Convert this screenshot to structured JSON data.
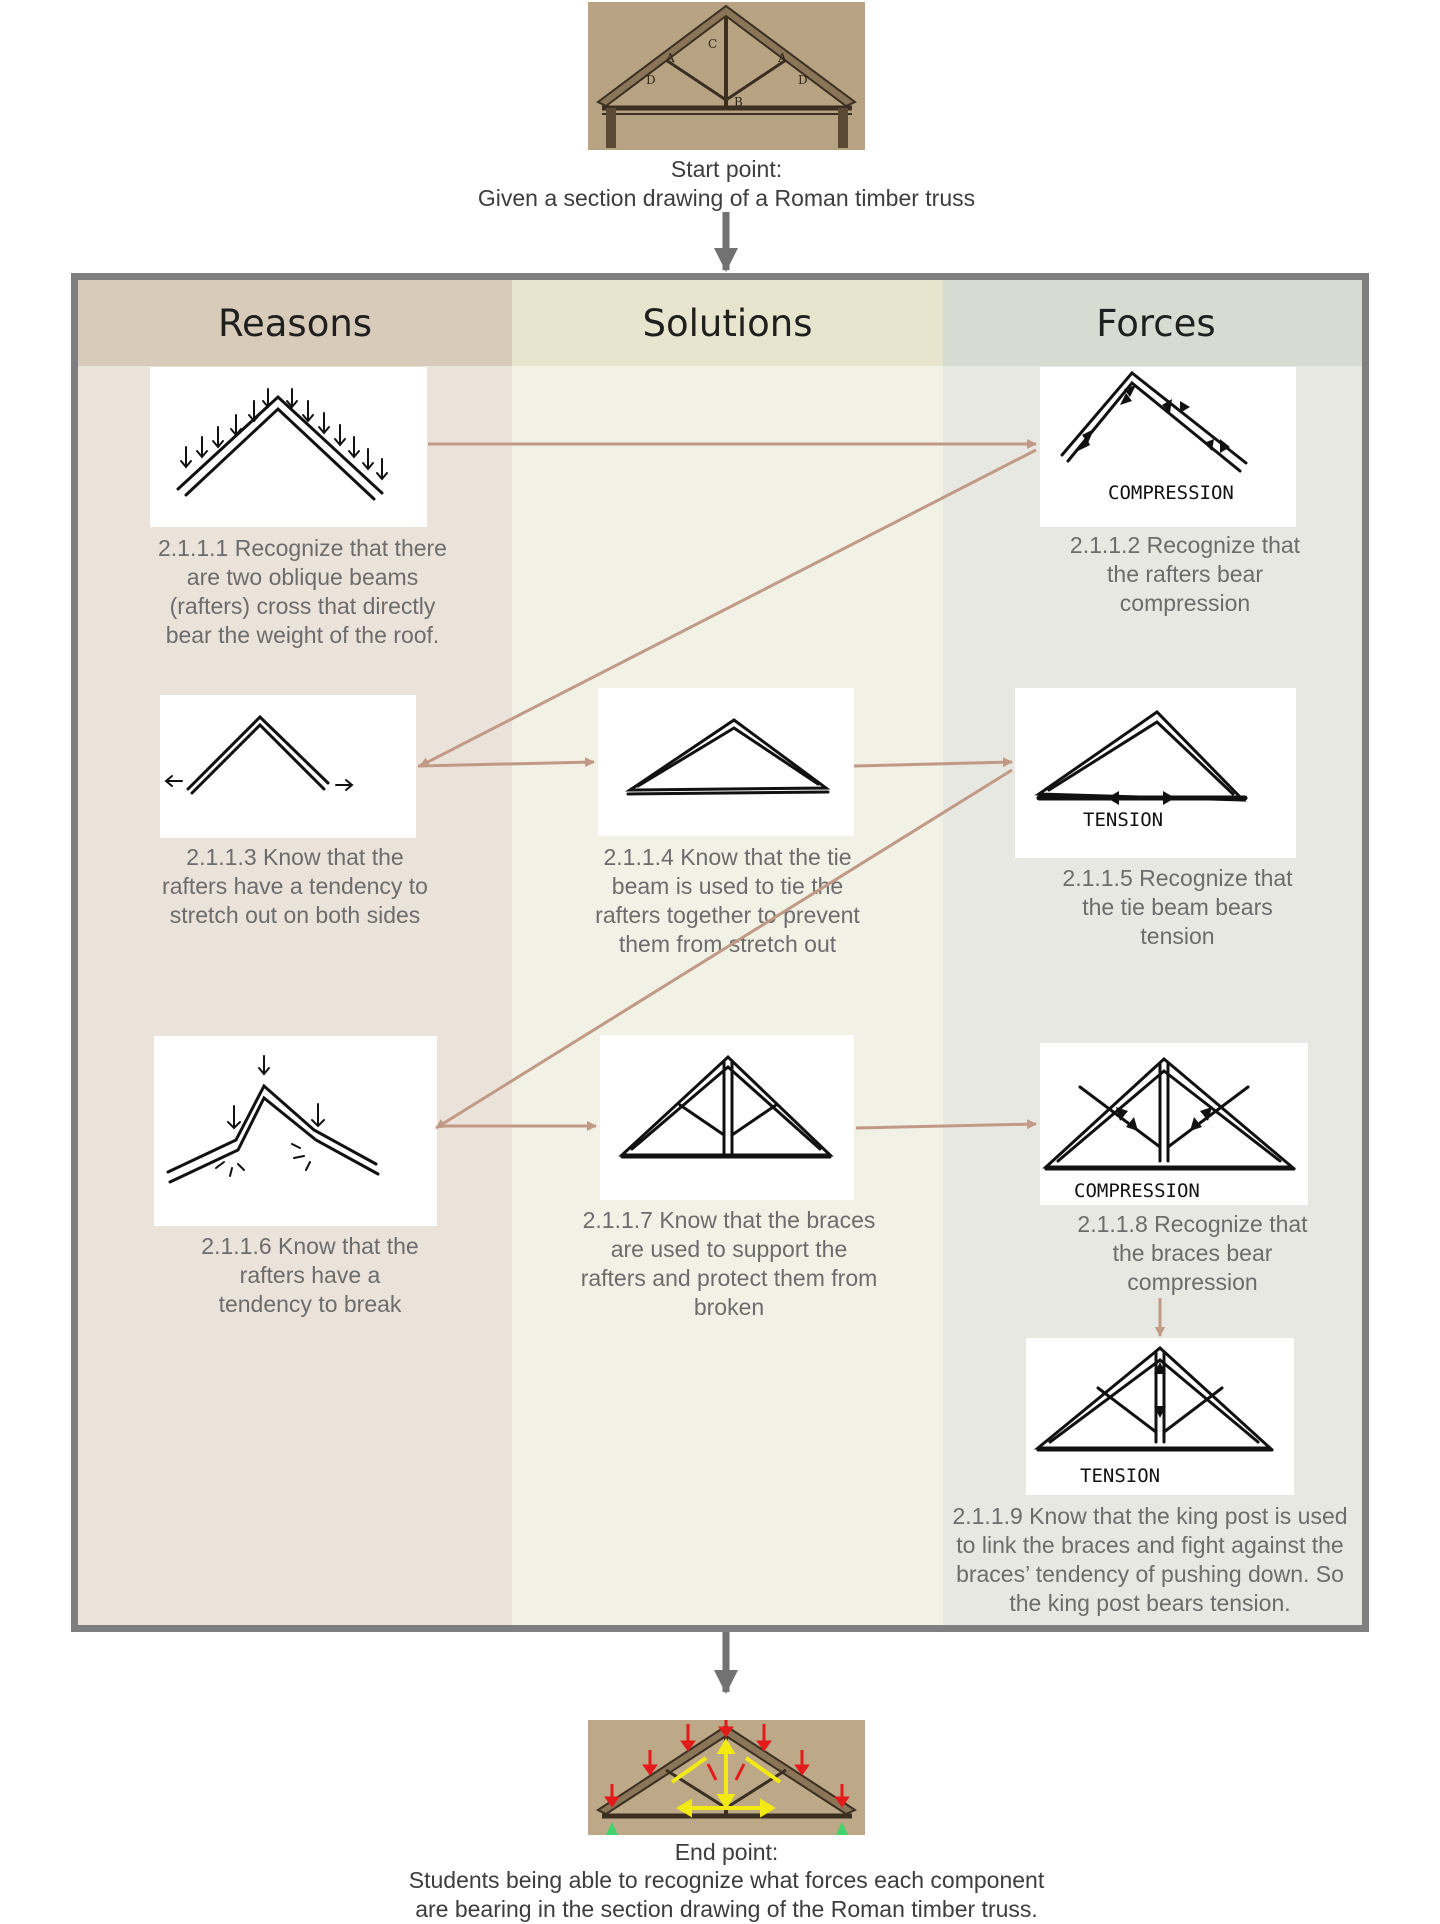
{
  "start": {
    "caption_title": "Start point:",
    "caption_text": "Given a section drawing of a Roman timber truss",
    "photo_letters": [
      "A",
      "A",
      "B",
      "C",
      "D",
      "D"
    ]
  },
  "columns": [
    {
      "key": "reasons",
      "title": "Reasons"
    },
    {
      "key": "solutions",
      "title": "Solutions"
    },
    {
      "key": "forces",
      "title": "Forces"
    }
  ],
  "steps": {
    "s1": "2.1.1.1 Recognize that there\nare  two oblique beams\n(rafters) cross  that directly\nbear the weight of the roof.",
    "s2": "2.1.1.2 Recognize that\nthe rafters  bear\ncompression",
    "s3": "2.1.1.3 Know that the\nrafters have a  tendency to\nstretch out on both sides",
    "s4": "2.1.1.4 Know that the tie\nbeam is  used to tie the\nrafters together to prevent\nthem from stretch out",
    "s5": "2.1.1.5 Recognize that\nthe tie beam  bears\ntension",
    "s6": "2.1.1.6 Know that the\nrafters have a\ntendency to break",
    "s7": "2.1.1.7 Know that the braces\nare  used to support the\nrafters and protect them from\nbroken",
    "s8": "2.1.1.8 Recognize that\nthe braces  bear\ncompression",
    "s9": "2.1.1.9 Know that the king post is  used\nto link the braces and fight  against the\nbraces’ tendency of  pushing down. So\nthe king post bears tension."
  },
  "sketch_labels": {
    "compression": "COMPRESSION",
    "tension": "TENSION"
  },
  "end": {
    "caption_title": "End point:",
    "caption_text": "Students being able to recognize  what forces each component\nare  bearing in the section drawing of the Roman timber truss."
  },
  "colors": {
    "arrow": "#c09a86",
    "frame": "#7f7f7f",
    "flow_arrow": "#727272",
    "force_down": "#e41b1b",
    "force_internal": "#f2ea12",
    "support": "#41d46c"
  }
}
